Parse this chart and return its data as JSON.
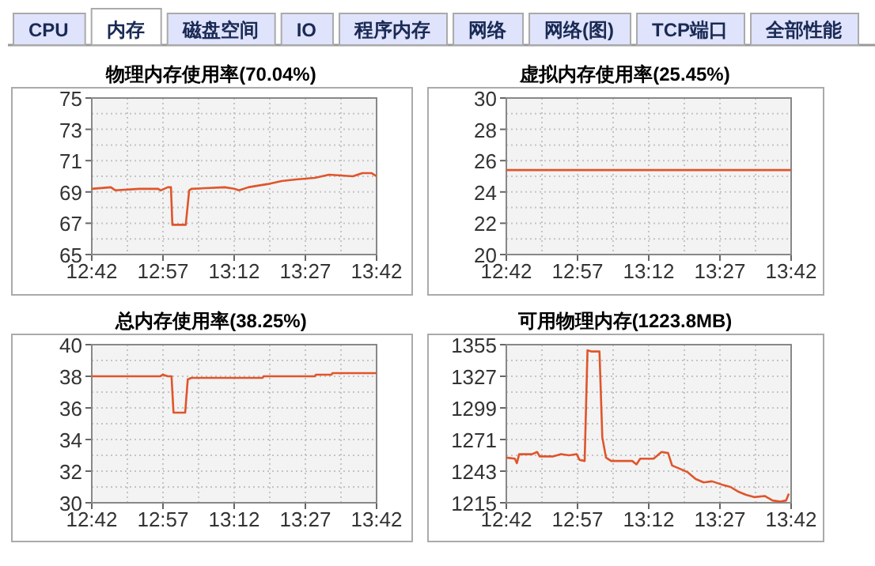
{
  "chart_data": [
    {
      "type": "other",
      "annotations": [
        "CPU",
        "内存",
        "磁盘空间",
        "IO",
        "程序内存",
        "网络",
        "网络(图)",
        "TCP端口",
        "全部性能"
      ]
    },
    {
      "type": "line",
      "title": "物理内存使用率(70.04%)",
      "grid": true,
      "xlim": [
        12.7,
        13.7
      ],
      "ylim": [
        65,
        75
      ],
      "xticks": [
        {
          "value": 12.7,
          "label": "12:42"
        },
        {
          "value": 12.825,
          "label": null
        },
        {
          "value": 12.95,
          "label": "12:57"
        },
        {
          "value": 13.075,
          "label": null
        },
        {
          "value": 13.2,
          "label": "13:12"
        },
        {
          "value": 13.325,
          "label": null
        },
        {
          "value": 13.45,
          "label": "13:27"
        },
        {
          "value": 13.575,
          "label": null
        },
        {
          "value": 13.7,
          "label": "13:42"
        }
      ],
      "yticks": [
        65,
        {
          "value": 66,
          "label": null
        },
        67,
        {
          "value": 68,
          "label": null
        },
        69,
        {
          "value": 70,
          "label": null
        },
        71,
        {
          "value": 72,
          "label": null
        },
        73,
        {
          "value": 74,
          "label": null
        },
        75
      ],
      "x": [
        12.7,
        12.767,
        12.783,
        12.867,
        12.933,
        12.942,
        12.967,
        12.978,
        12.983,
        13.03,
        13.042,
        13.05,
        13.167,
        13.2,
        13.217,
        13.25,
        13.283,
        13.317,
        13.367,
        13.417,
        13.483,
        13.533,
        13.617,
        13.65,
        13.683,
        13.7
      ],
      "series": [
        {
          "color": "#e0552b",
          "values": [
            69.2,
            69.3,
            69.1,
            69.2,
            69.2,
            69.1,
            69.3,
            69.3,
            66.9,
            66.9,
            69.1,
            69.2,
            69.3,
            69.2,
            69.1,
            69.3,
            69.4,
            69.5,
            69.7,
            69.8,
            69.9,
            70.1,
            70.0,
            70.2,
            70.2,
            70.0
          ]
        }
      ]
    },
    {
      "type": "line",
      "title": "虚拟内存使用率(25.45%)",
      "grid": true,
      "xlim": [
        12.7,
        13.7
      ],
      "ylim": [
        20,
        30
      ],
      "xticks": [
        {
          "value": 12.7,
          "label": "12:42"
        },
        {
          "value": 12.825,
          "label": null
        },
        {
          "value": 12.95,
          "label": "12:57"
        },
        {
          "value": 13.075,
          "label": null
        },
        {
          "value": 13.2,
          "label": "13:12"
        },
        {
          "value": 13.325,
          "label": null
        },
        {
          "value": 13.45,
          "label": "13:27"
        },
        {
          "value": 13.575,
          "label": null
        },
        {
          "value": 13.7,
          "label": "13:42"
        }
      ],
      "yticks": [
        20,
        {
          "value": 21,
          "label": null
        },
        22,
        {
          "value": 23,
          "label": null
        },
        24,
        {
          "value": 25,
          "label": null
        },
        26,
        {
          "value": 27,
          "label": null
        },
        28,
        {
          "value": 29,
          "label": null
        },
        30
      ],
      "x": [
        12.7,
        13.7
      ],
      "series": [
        {
          "color": "#e0552b",
          "values": [
            25.4,
            25.4
          ]
        }
      ]
    },
    {
      "type": "line",
      "title": "总内存使用率(38.25%)",
      "grid": true,
      "xlim": [
        12.7,
        13.7
      ],
      "ylim": [
        30,
        40
      ],
      "xticks": [
        {
          "value": 12.7,
          "label": "12:42"
        },
        {
          "value": 12.825,
          "label": null
        },
        {
          "value": 12.95,
          "label": "12:57"
        },
        {
          "value": 13.075,
          "label": null
        },
        {
          "value": 13.2,
          "label": "13:12"
        },
        {
          "value": 13.325,
          "label": null
        },
        {
          "value": 13.45,
          "label": "13:27"
        },
        {
          "value": 13.575,
          "label": null
        },
        {
          "value": 13.7,
          "label": "13:42"
        }
      ],
      "yticks": [
        30,
        {
          "value": 31,
          "label": null
        },
        32,
        {
          "value": 33,
          "label": null
        },
        34,
        {
          "value": 35,
          "label": null
        },
        36,
        {
          "value": 37,
          "label": null
        },
        38,
        {
          "value": 39,
          "label": null
        },
        40
      ],
      "x": [
        12.7,
        12.94,
        12.95,
        12.967,
        12.98,
        12.987,
        13.028,
        13.037,
        13.05,
        13.3,
        13.303,
        13.483,
        13.487,
        13.542,
        13.545,
        13.7
      ],
      "series": [
        {
          "color": "#e0552b",
          "values": [
            38.0,
            38.0,
            38.1,
            38.0,
            38.0,
            35.7,
            35.7,
            37.8,
            37.9,
            37.9,
            38.0,
            38.0,
            38.1,
            38.1,
            38.2,
            38.2
          ]
        }
      ]
    },
    {
      "type": "line",
      "title": "可用物理内存(1223.8MB)",
      "grid": true,
      "xlim": [
        12.7,
        13.7
      ],
      "ylim": [
        1215,
        1355
      ],
      "xticks": [
        {
          "value": 12.7,
          "label": "12:42"
        },
        {
          "value": 12.825,
          "label": null
        },
        {
          "value": 12.95,
          "label": "12:57"
        },
        {
          "value": 13.075,
          "label": null
        },
        {
          "value": 13.2,
          "label": "13:12"
        },
        {
          "value": 13.325,
          "label": null
        },
        {
          "value": 13.45,
          "label": "13:27"
        },
        {
          "value": 13.575,
          "label": null
        },
        {
          "value": 13.7,
          "label": "13:42"
        }
      ],
      "yticks": [
        1215,
        {
          "value": 1229,
          "label": null
        },
        1243,
        {
          "value": 1257,
          "label": null
        },
        1271,
        {
          "value": 1285,
          "label": null
        },
        1299,
        {
          "value": 1313,
          "label": null
        },
        1327,
        {
          "value": 1341,
          "label": null
        },
        1355
      ],
      "x": [
        12.7,
        12.73,
        12.737,
        12.745,
        12.79,
        12.808,
        12.817,
        12.863,
        12.892,
        12.92,
        12.947,
        12.957,
        12.975,
        12.985,
        12.998,
        13.027,
        13.037,
        13.05,
        13.068,
        13.142,
        13.157,
        13.17,
        13.217,
        13.245,
        13.268,
        13.282,
        13.31,
        13.337,
        13.365,
        13.393,
        13.422,
        13.458,
        13.487,
        13.513,
        13.542,
        13.57,
        13.607,
        13.635,
        13.662,
        13.682,
        13.692
      ],
      "series": [
        {
          "color": "#e0552b",
          "values": [
            1255,
            1254,
            1250,
            1258,
            1258,
            1260,
            1256,
            1256,
            1258,
            1257,
            1258,
            1253,
            1252,
            1350,
            1349,
            1349,
            1273,
            1255,
            1252,
            1252,
            1249,
            1254,
            1254,
            1260,
            1259,
            1248,
            1245,
            1242,
            1236,
            1233,
            1234,
            1231,
            1229,
            1225,
            1222,
            1220,
            1221,
            1217,
            1216,
            1217,
            1223
          ]
        }
      ]
    }
  ]
}
